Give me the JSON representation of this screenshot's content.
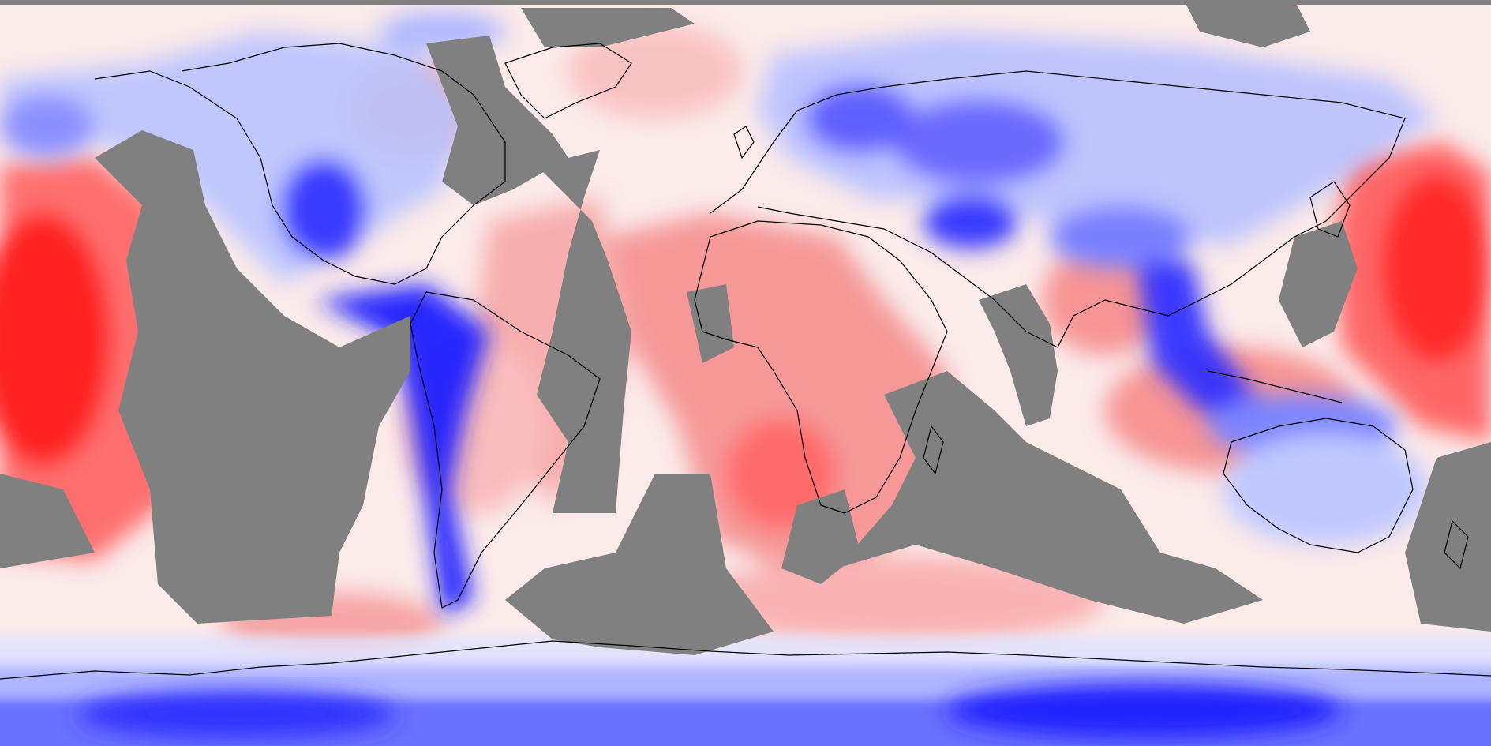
{
  "map": {
    "projection": "equirectangular",
    "extent": {
      "lon": [
        -180,
        180
      ],
      "lat": [
        -90,
        90
      ]
    },
    "colormap": {
      "negative": "#0000ff",
      "neutral": "#ffffff",
      "positive": "#ff0000"
    },
    "no_data_color": "#808080",
    "coastline_color": "#000000",
    "regions": {
      "anomaly_fields": [
        {
          "name": "central-pacific-warm-anomaly",
          "sign": "positive"
        },
        {
          "name": "west-pacific-warm-anomaly",
          "sign": "positive"
        },
        {
          "name": "africa-warm-anomaly",
          "sign": "positive"
        },
        {
          "name": "south-atlantic-warm-anomaly",
          "sign": "positive"
        },
        {
          "name": "north-america-cold-anomaly",
          "sign": "negative"
        },
        {
          "name": "eurasia-cold-anomaly",
          "sign": "negative"
        },
        {
          "name": "southeast-asia-cold-anomaly",
          "sign": "negative"
        },
        {
          "name": "andes-cold-anomaly",
          "sign": "negative"
        },
        {
          "name": "antarctic-cold-band",
          "sign": "negative"
        }
      ],
      "missing_data": [
        "east-pacific-no-data",
        "north-atlantic-no-data",
        "south-atlantic-no-data",
        "southern-indian-ocean-no-data",
        "arabian-sea-no-data",
        "arctic-no-data"
      ]
    }
  }
}
